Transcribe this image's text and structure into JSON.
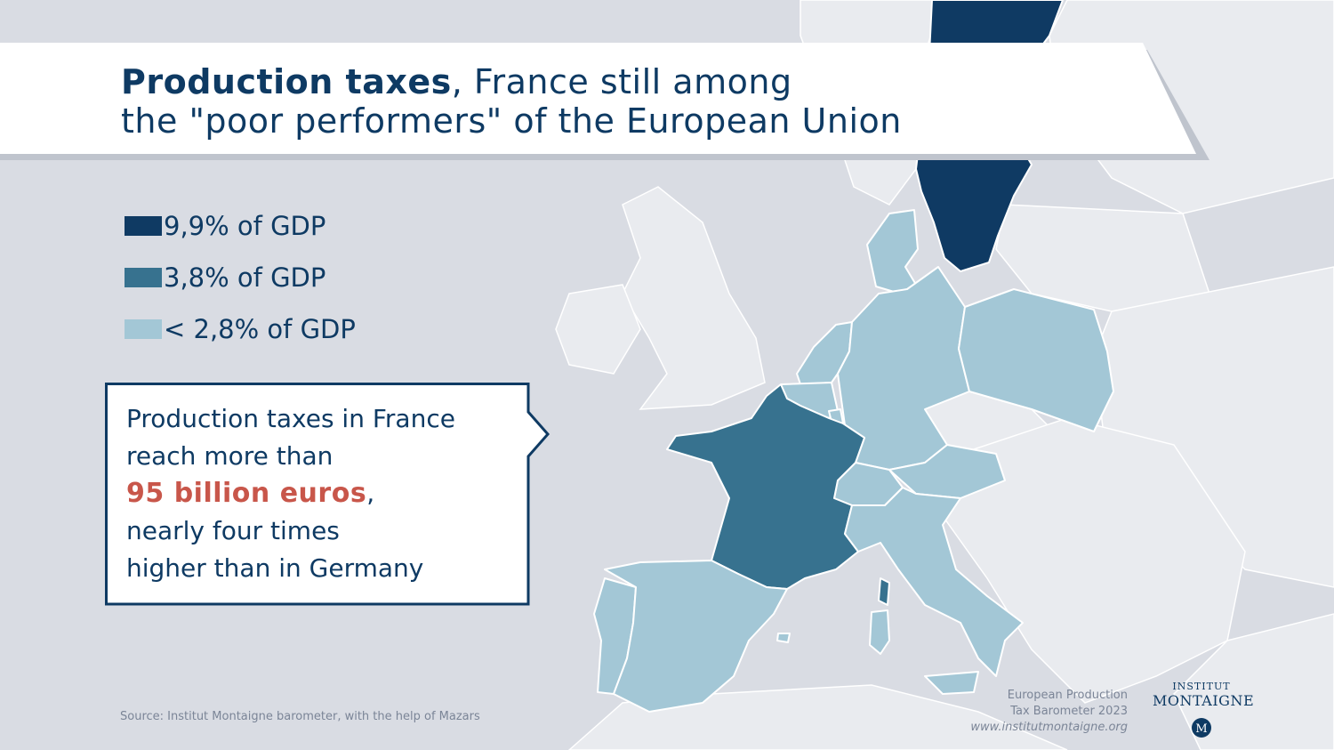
{
  "title": {
    "strong": "Production taxes",
    "rest_line1": ", France still among",
    "line2": "the \"poor performers\" of the European Union"
  },
  "legend": [
    {
      "label": "9,9% of GDP",
      "color": "#0f3a63"
    },
    {
      "label": "3,8% of GDP",
      "color": "#37728f"
    },
    {
      "label": "< 2,8% of GDP",
      "color": "#a3c7d6"
    }
  ],
  "callout": {
    "line1": "Production taxes in France",
    "line2": "reach more than",
    "highlight": "95 billion euros",
    "highlight_suffix": ",",
    "line4": "nearly four times",
    "line5": "higher than in Germany",
    "highlight_color": "#c8564a"
  },
  "source": "Source: Institut Montaigne barometer, with the help of Mazars",
  "barometer": {
    "line1": "European Production",
    "line2": "Tax Barometer 2023",
    "url": "www.institutmontaigne.org"
  },
  "logo": {
    "top": "INSTITUT",
    "main": "MONTAIGNE",
    "seal_letter": "M"
  },
  "map": {
    "colors": {
      "sea": "#d9dce3",
      "other_land": "#e9ebef",
      "borders": "#ffffff",
      "high": "#0f3a63",
      "mid": "#37728f",
      "low": "#a3c7d6"
    },
    "regions": [
      {
        "name": "Sweden",
        "level": "high"
      },
      {
        "name": "France",
        "level": "mid"
      },
      {
        "name": "Spain",
        "level": "low"
      },
      {
        "name": "Portugal",
        "level": "low"
      },
      {
        "name": "Italy",
        "level": "low"
      },
      {
        "name": "Germany",
        "level": "low"
      },
      {
        "name": "Denmark",
        "level": "low"
      },
      {
        "name": "Netherlands",
        "level": "low"
      },
      {
        "name": "Belgium",
        "level": "low"
      },
      {
        "name": "Luxembourg",
        "level": "low"
      },
      {
        "name": "Austria",
        "level": "low"
      },
      {
        "name": "Switzerland",
        "level": "low"
      },
      {
        "name": "Poland",
        "level": "low"
      }
    ]
  }
}
